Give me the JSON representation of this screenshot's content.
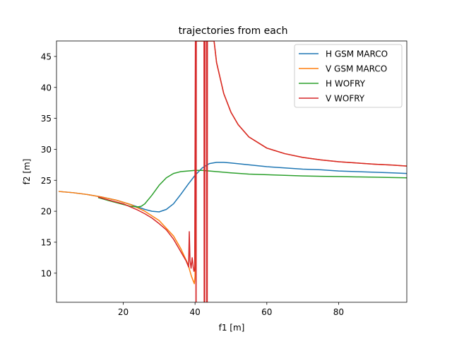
{
  "chart_data": {
    "type": "line",
    "title": "trajectories from each",
    "xlabel": "f1 [m]",
    "ylabel": "f2 [m]",
    "xlim": [
      1.4,
      99.0
    ],
    "ylim": [
      5.3,
      47.5
    ],
    "xticks": [
      20,
      40,
      60,
      80
    ],
    "yticks": [
      10,
      15,
      20,
      25,
      30,
      35,
      40,
      45
    ],
    "xtick_labels": [
      "20",
      "40",
      "60",
      "80"
    ],
    "ytick_labels": [
      "10",
      "15",
      "20",
      "25",
      "30",
      "35",
      "40",
      "45"
    ],
    "grid": false,
    "legend_position": "top-right",
    "series": [
      {
        "name": "H GSM MARCO",
        "color": "#1f77b4",
        "x": [
          2,
          6,
          10,
          14,
          18,
          22,
          24,
          26,
          28,
          30,
          32,
          34,
          36,
          38,
          40,
          42,
          44,
          46,
          48,
          50,
          55,
          60,
          65,
          70,
          75,
          80,
          85,
          90,
          95,
          99
        ],
        "y": [
          23.2,
          23.0,
          22.7,
          22.3,
          21.8,
          21.1,
          20.7,
          20.3,
          20.0,
          19.9,
          20.3,
          21.2,
          22.7,
          24.3,
          25.8,
          27.0,
          27.7,
          27.9,
          27.9,
          27.8,
          27.5,
          27.2,
          27.0,
          26.8,
          26.7,
          26.5,
          26.4,
          26.3,
          26.2,
          26.1
        ]
      },
      {
        "name": "V GSM MARCO",
        "color": "#ff7f0e",
        "x": [
          2,
          6,
          10,
          14,
          18,
          22,
          26,
          30,
          34,
          36,
          38,
          39,
          39.8,
          40.0,
          40.15,
          45.3,
          46,
          48,
          50,
          52,
          55,
          60,
          65,
          70,
          75,
          80,
          85,
          90,
          95,
          99
        ],
        "y": [
          23.2,
          23.0,
          22.7,
          22.3,
          21.8,
          21.1,
          20.0,
          18.5,
          16.0,
          14.0,
          11.5,
          9.5,
          8.3,
          9.5,
          47.5,
          47.5,
          44.0,
          39.0,
          36.0,
          34.0,
          32.0,
          30.2,
          29.3,
          28.7,
          28.3,
          28.0,
          27.8,
          27.6,
          27.45,
          27.3
        ]
      },
      {
        "name": "H WOFRY",
        "color": "#2ca02c",
        "x": [
          13,
          16,
          20,
          22,
          24,
          25,
          26,
          28,
          30,
          32,
          34,
          36,
          38,
          40,
          42,
          44,
          46,
          50,
          55,
          60,
          65,
          70,
          75,
          80,
          85,
          90,
          95,
          99
        ],
        "y": [
          22.2,
          21.7,
          21.1,
          20.8,
          20.7,
          20.8,
          21.2,
          22.6,
          24.2,
          25.4,
          26.1,
          26.4,
          26.5,
          26.6,
          26.6,
          26.5,
          26.4,
          26.2,
          26.0,
          25.9,
          25.8,
          25.7,
          25.65,
          25.6,
          25.55,
          25.5,
          25.45,
          25.4
        ]
      },
      {
        "name": "V WOFRY",
        "color": "#d62728",
        "x": [
          13,
          16,
          20,
          22,
          24,
          26,
          28,
          30,
          32,
          34,
          36,
          37.5,
          38.2,
          38.4,
          38.6,
          38.9,
          39.2,
          39.5,
          39.7,
          39.9,
          40.1,
          40.25,
          40.25,
          40.3,
          40.35,
          42.5,
          42.55,
          42.7,
          42.75,
          43.2,
          43.25,
          43.4,
          43.45,
          45.3,
          46,
          48,
          50,
          52,
          55,
          60,
          65,
          70,
          75,
          80,
          85,
          90,
          95,
          99
        ],
        "y": [
          22.3,
          21.8,
          21.2,
          20.7,
          20.2,
          19.6,
          18.9,
          18.0,
          17.0,
          15.5,
          13.5,
          12.0,
          11.0,
          16.7,
          12.0,
          10.8,
          12.5,
          11.0,
          10.3,
          10.5,
          47.5,
          47.5,
          5.3,
          5.3,
          47.5,
          47.5,
          5.3,
          5.3,
          47.5,
          47.5,
          5.3,
          5.3,
          47.5,
          47.5,
          44.0,
          39.0,
          36.0,
          34.0,
          32.0,
          30.2,
          29.3,
          28.7,
          28.3,
          28.0,
          27.8,
          27.6,
          27.45,
          27.3
        ]
      }
    ]
  }
}
